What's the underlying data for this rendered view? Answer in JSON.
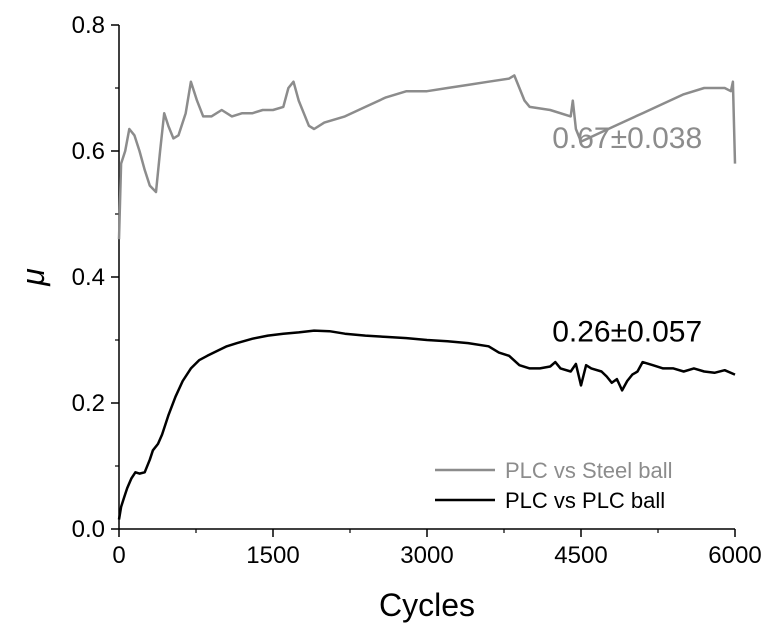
{
  "chart_data": {
    "type": "line",
    "xlabel": "Cycles",
    "ylabel": "μ",
    "xlim": [
      0,
      6000
    ],
    "ylim": [
      0.0,
      0.8
    ],
    "x_ticks": [
      0,
      1500,
      3000,
      4500,
      6000
    ],
    "x_tick_labels": [
      "0",
      "1500",
      "3000",
      "4500",
      "6000"
    ],
    "y_ticks": [
      0.0,
      0.2,
      0.4,
      0.6,
      0.8
    ],
    "y_tick_labels": [
      "0.0",
      "0.2",
      "0.4",
      "0.6",
      "0.8"
    ],
    "grid": false,
    "legend_position": "bottom-right",
    "series": [
      {
        "name": "PLC vs Steel ball",
        "color": "#8c8c8c",
        "x": [
          0,
          20,
          60,
          100,
          150,
          200,
          250,
          300,
          360,
          400,
          440,
          480,
          530,
          580,
          650,
          700,
          760,
          820,
          900,
          1000,
          1100,
          1200,
          1300,
          1400,
          1500,
          1600,
          1650,
          1700,
          1750,
          1800,
          1850,
          1900,
          2000,
          2200,
          2400,
          2600,
          2800,
          3000,
          3200,
          3400,
          3600,
          3800,
          3850,
          3900,
          3950,
          4000,
          4200,
          4400,
          4420,
          4450,
          4500,
          4700,
          4900,
          5100,
          5300,
          5500,
          5700,
          5900,
          5960,
          5980,
          6000
        ],
        "y": [
          0.46,
          0.58,
          0.6,
          0.635,
          0.625,
          0.6,
          0.57,
          0.545,
          0.535,
          0.6,
          0.66,
          0.64,
          0.62,
          0.625,
          0.66,
          0.71,
          0.68,
          0.655,
          0.655,
          0.665,
          0.655,
          0.66,
          0.66,
          0.665,
          0.665,
          0.67,
          0.7,
          0.71,
          0.68,
          0.66,
          0.64,
          0.635,
          0.645,
          0.655,
          0.67,
          0.685,
          0.695,
          0.695,
          0.7,
          0.705,
          0.71,
          0.715,
          0.72,
          0.7,
          0.68,
          0.67,
          0.665,
          0.655,
          0.68,
          0.635,
          0.615,
          0.63,
          0.645,
          0.66,
          0.675,
          0.69,
          0.7,
          0.7,
          0.695,
          0.71,
          0.58
        ]
      },
      {
        "name": "PLC vs PLC ball",
        "color": "#000000",
        "x": [
          0,
          20,
          50,
          80,
          120,
          160,
          200,
          250,
          300,
          330,
          380,
          420,
          480,
          550,
          620,
          700,
          780,
          860,
          950,
          1050,
          1150,
          1300,
          1450,
          1600,
          1750,
          1900,
          2050,
          2200,
          2400,
          2600,
          2800,
          3000,
          3200,
          3400,
          3600,
          3700,
          3800,
          3900,
          4000,
          4100,
          4200,
          4250,
          4300,
          4400,
          4450,
          4500,
          4550,
          4600,
          4700,
          4750,
          4800,
          4850,
          4900,
          4950,
          5000,
          5050,
          5100,
          5200,
          5300,
          5400,
          5500,
          5600,
          5700,
          5800,
          5900,
          6000
        ],
        "y": [
          0.015,
          0.035,
          0.05,
          0.065,
          0.08,
          0.09,
          0.088,
          0.09,
          0.11,
          0.125,
          0.135,
          0.15,
          0.18,
          0.21,
          0.235,
          0.255,
          0.268,
          0.275,
          0.282,
          0.29,
          0.295,
          0.302,
          0.307,
          0.31,
          0.312,
          0.315,
          0.314,
          0.31,
          0.307,
          0.305,
          0.303,
          0.3,
          0.298,
          0.295,
          0.29,
          0.28,
          0.275,
          0.26,
          0.255,
          0.255,
          0.258,
          0.265,
          0.255,
          0.25,
          0.262,
          0.228,
          0.26,
          0.255,
          0.25,
          0.242,
          0.232,
          0.238,
          0.22,
          0.235,
          0.245,
          0.25,
          0.265,
          0.26,
          0.255,
          0.255,
          0.25,
          0.255,
          0.25,
          0.248,
          0.252,
          0.245
        ]
      }
    ],
    "annotations": [
      {
        "text": "0.67±0.038",
        "x": 4950,
        "y": 0.605,
        "color": "#8c8c8c"
      },
      {
        "text": "0.26±0.057",
        "x": 4950,
        "y": 0.298,
        "color": "#000000"
      }
    ]
  }
}
